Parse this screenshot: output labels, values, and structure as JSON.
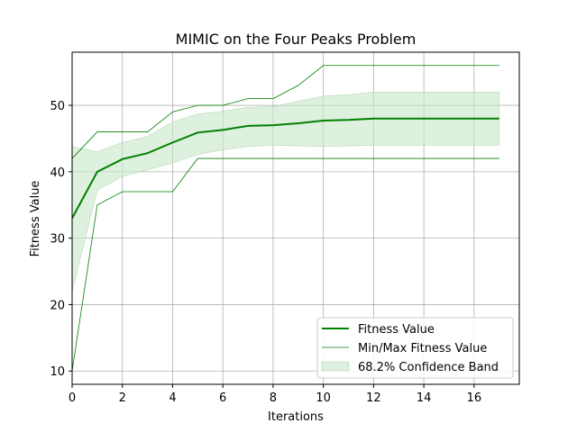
{
  "chart_data": {
    "type": "line",
    "title": "MIMIC on the Four Peaks Problem",
    "xlabel": "Iterations",
    "ylabel": "Fitness Value",
    "xlim": [
      0,
      17.8
    ],
    "ylim": [
      8,
      58
    ],
    "xticks": [
      "0",
      "2",
      "4",
      "6",
      "8",
      "10",
      "12",
      "14",
      "16"
    ],
    "yticks": [
      "10",
      "20",
      "30",
      "40",
      "50"
    ],
    "grid": true,
    "legend_position": "bottom-right",
    "colors": {
      "line": "#008000",
      "band": "#c8e6c8",
      "grid": "#b0b0b0"
    },
    "x": [
      0,
      1,
      2,
      3,
      4,
      5,
      6,
      7,
      8,
      9,
      10,
      11,
      12,
      13,
      14,
      15,
      16,
      17
    ],
    "series": [
      {
        "name": "Fitness Value",
        "values": [
          33,
          40,
          41.9,
          42.8,
          44.4,
          45.9,
          46.3,
          46.9,
          47,
          47.3,
          47.7,
          47.8,
          48,
          48,
          48,
          48,
          48,
          48
        ]
      },
      {
        "name": "Min/Max Fitness Value",
        "min": [
          10,
          35,
          37,
          37,
          37,
          42,
          42,
          42,
          42,
          42,
          42,
          42,
          42,
          42,
          42,
          42,
          42,
          42
        ],
        "max": [
          42,
          46,
          46,
          46,
          49,
          50,
          50,
          51,
          51,
          53,
          56,
          56,
          56,
          56,
          56,
          56,
          56,
          56
        ]
      },
      {
        "name": "68.2% Confidence Band",
        "lower": [
          22,
          37.2,
          39.3,
          40.3,
          41.3,
          42.6,
          43.3,
          43.8,
          44,
          43.9,
          43.8,
          43.9,
          44,
          44,
          44,
          44,
          44,
          44
        ],
        "upper": [
          43.8,
          43,
          44.4,
          45.3,
          47.5,
          48.7,
          49.1,
          49.7,
          49.8,
          50.6,
          51.4,
          51.6,
          52,
          52,
          52,
          52,
          52,
          52
        ]
      }
    ]
  }
}
